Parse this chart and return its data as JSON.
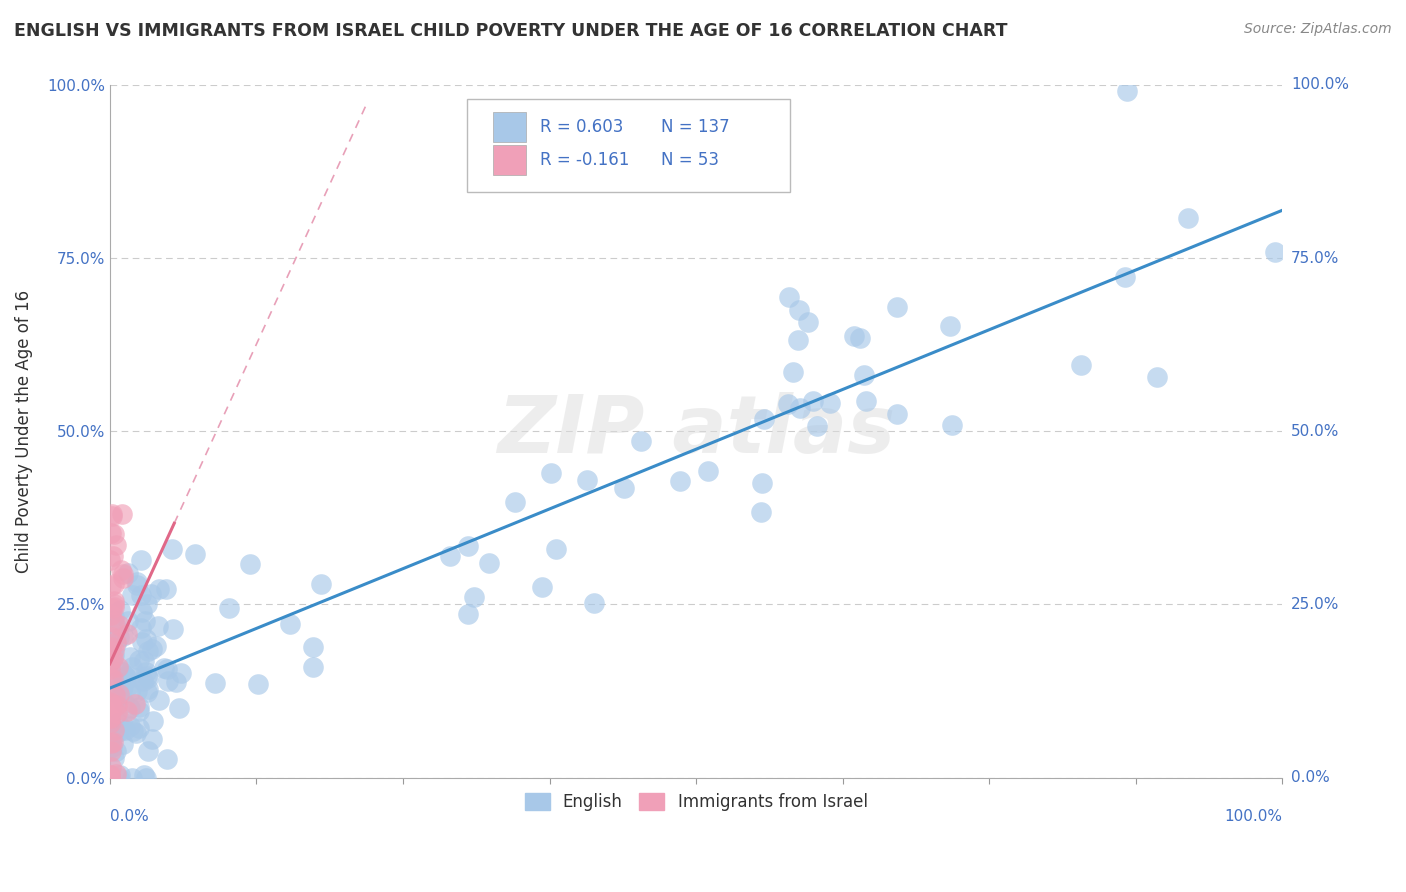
{
  "title": "ENGLISH VS IMMIGRANTS FROM ISRAEL CHILD POVERTY UNDER THE AGE OF 16 CORRELATION CHART",
  "source": "Source: ZipAtlas.com",
  "ylabel": "Child Poverty Under the Age of 16",
  "legend_english_R": 0.603,
  "legend_english_N": 137,
  "legend_israel_R": -0.161,
  "legend_israel_N": 53,
  "english_scatter_color": "#a8c8e8",
  "israel_scatter_color": "#f0a0b8",
  "english_line_color": "#3a8cc8",
  "israel_line_color": "#e06888",
  "israel_line_dashed_color": "#e8a0b8",
  "background_color": "#ffffff",
  "grid_color": "#cccccc",
  "title_color": "#333333",
  "tick_label_color": "#4472c4",
  "watermark_text": "ZIP atlas",
  "ytick_vals": [
    0.0,
    0.25,
    0.5,
    0.75,
    1.0
  ],
  "ytick_labels": [
    "0.0%",
    "25.0%",
    "50.0%",
    "75.0%",
    "100.0%"
  ]
}
